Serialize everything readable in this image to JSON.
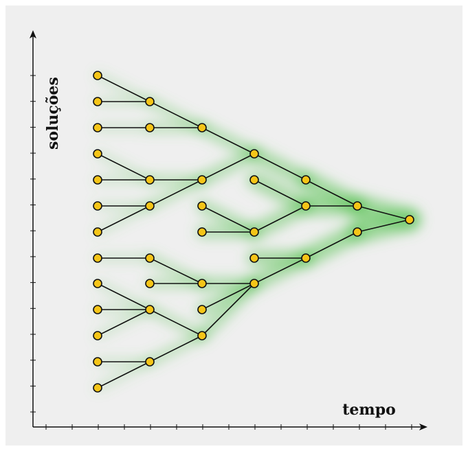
{
  "axes": {
    "x_label": "tempo",
    "y_label": "soluções"
  }
}
